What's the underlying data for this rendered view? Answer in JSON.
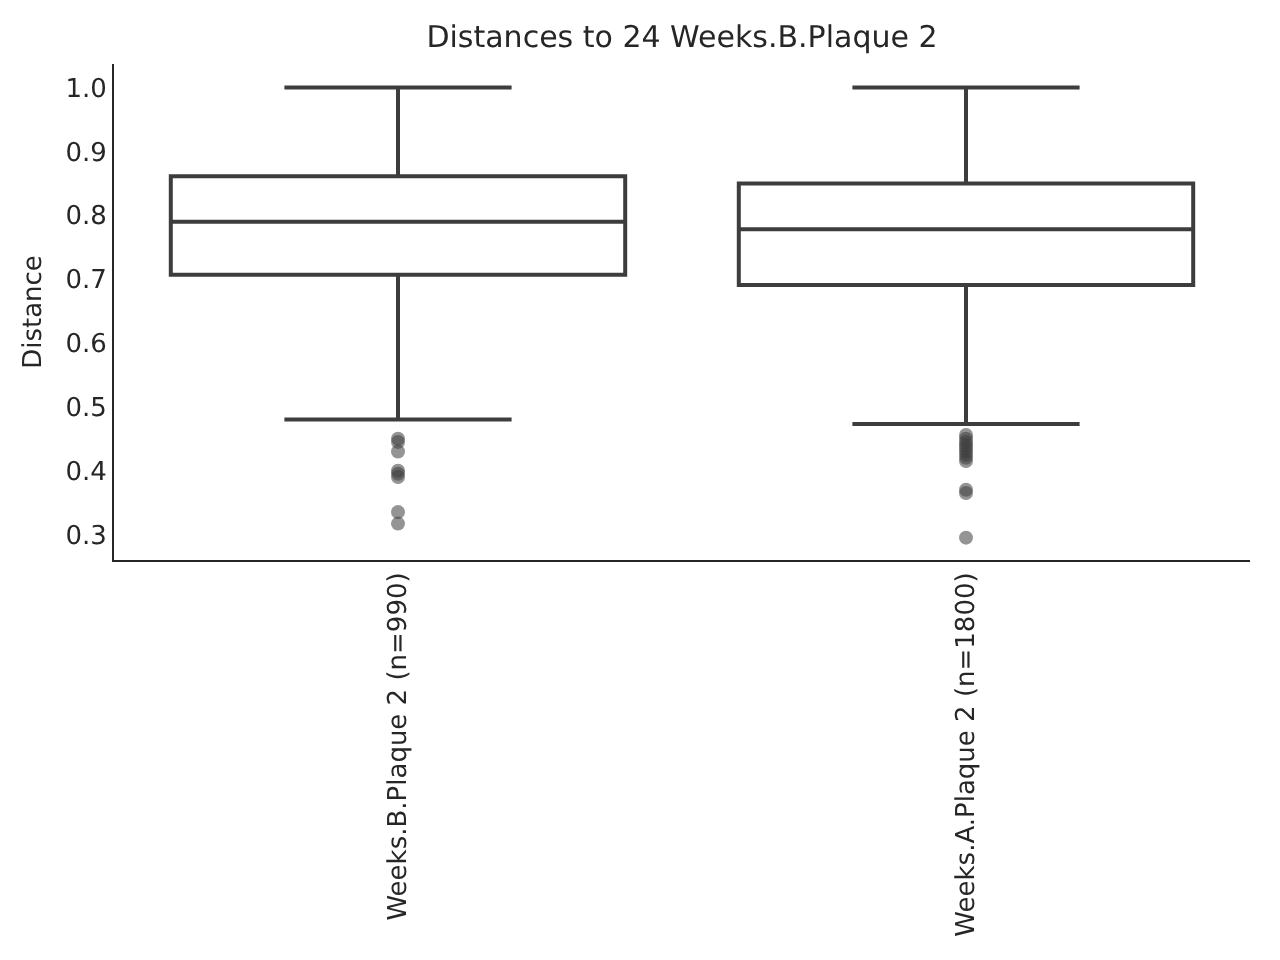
{
  "chart_data": {
    "type": "box",
    "title": "Distances to 24 Weeks.B.Plaque 2",
    "ylabel": "Distance",
    "categories": [
      "Weeks.B.Plaque 2 (n=990)",
      "Weeks.A.Plaque 2 (n=1800)"
    ],
    "color": "#3d3d3d",
    "marker": "circle",
    "boxes": [
      {
        "low": 0.48,
        "q1": 0.707,
        "median": 0.79,
        "q3": 0.861,
        "high": 1.0,
        "outliers": [
          0.45,
          0.445,
          0.43,
          0.4,
          0.395,
          0.39,
          0.335,
          0.317
        ]
      },
      {
        "low": 0.473,
        "q1": 0.691,
        "median": 0.778,
        "q3": 0.85,
        "high": 1.0,
        "outliers": [
          0.456,
          0.45,
          0.445,
          0.44,
          0.435,
          0.43,
          0.425,
          0.42,
          0.415,
          0.37,
          0.365,
          0.295
        ]
      }
    ],
    "ylim": [
      0.26,
      1.037
    ],
    "yticks": [
      0.3,
      0.4,
      0.5,
      0.6,
      0.7,
      0.8,
      0.9,
      {
        "value": 1.0,
        "label": "1.0"
      }
    ]
  }
}
